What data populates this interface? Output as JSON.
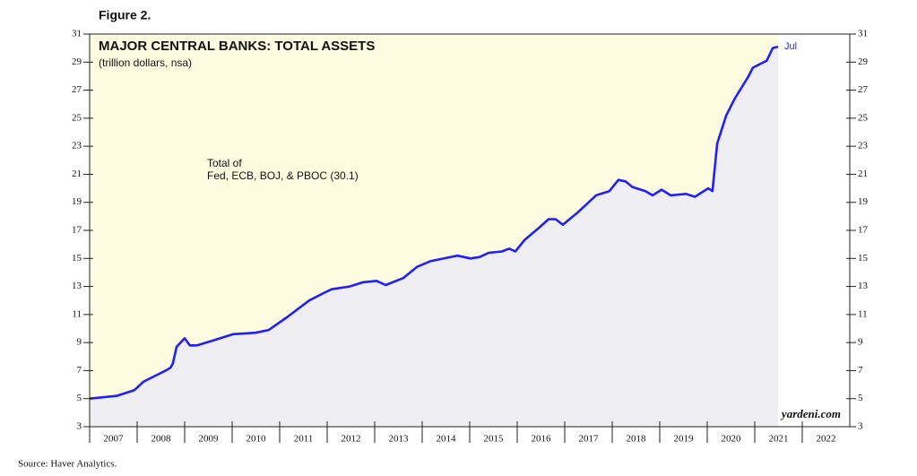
{
  "chart_data": {
    "type": "line",
    "figure_label": "Figure 2.",
    "title": "MAJOR CENTRAL BANKS: TOTAL ASSETS",
    "subtitle": "(trillion dollars, nsa)",
    "annotation": [
      "Total of",
      "Fed, ECB, BOJ, & PBOC (30.1)"
    ],
    "end_label": "Jul",
    "watermark": "yardeni.com",
    "source": "Source: Haver Analytics.",
    "x": [
      2007.0,
      2007.57,
      2007.94,
      2008.13,
      2008.42,
      2008.6,
      2008.7,
      2008.75,
      2008.83,
      2009.0,
      2009.11,
      2009.26,
      2009.55,
      2010.02,
      2010.49,
      2010.77,
      2011.15,
      2011.62,
      2011.91,
      2012.09,
      2012.47,
      2012.75,
      2013.04,
      2013.23,
      2013.6,
      2013.89,
      2014.17,
      2014.74,
      2015.02,
      2015.21,
      2015.4,
      2015.68,
      2015.83,
      2015.96,
      2016.15,
      2016.43,
      2016.66,
      2016.81,
      2016.96,
      2017.28,
      2017.66,
      2017.94,
      2018.13,
      2018.28,
      2018.42,
      2018.7,
      2018.85,
      2019.04,
      2019.23,
      2019.55,
      2019.74,
      2020.02,
      2020.11,
      2020.21,
      2020.4,
      2020.58,
      2020.87,
      2020.96,
      2021.25,
      2021.38,
      2021.49
    ],
    "series": [
      {
        "color": "#1f1fff",
        "values": [
          5.0,
          5.2,
          5.6,
          6.2,
          6.7,
          7.0,
          7.2,
          7.5,
          8.7,
          9.3,
          8.8,
          8.8,
          9.1,
          9.6,
          9.7,
          9.9,
          10.8,
          12.0,
          12.5,
          12.8,
          13.0,
          13.3,
          13.4,
          13.1,
          13.6,
          14.4,
          14.8,
          15.2,
          15.0,
          15.1,
          15.4,
          15.5,
          15.7,
          15.5,
          16.3,
          17.1,
          17.8,
          17.8,
          17.4,
          18.3,
          19.5,
          19.8,
          20.6,
          20.5,
          20.1,
          19.8,
          19.5,
          19.9,
          19.5,
          19.6,
          19.4,
          20.0,
          19.8,
          23.2,
          25.2,
          26.4,
          28.0,
          28.6,
          29.1,
          30.0,
          30.1
        ]
      }
    ],
    "area_color": "#efeff3",
    "background_color": "#fefce0",
    "xlim": [
      2007,
      2023
    ],
    "xticks": [
      {
        "value": 2007,
        "label": "2007"
      },
      {
        "value": 2008,
        "label": "2008"
      },
      {
        "value": 2009,
        "label": "2009"
      },
      {
        "value": 2010,
        "label": "2010"
      },
      {
        "value": 2011,
        "label": "2011"
      },
      {
        "value": 2012,
        "label": "2012"
      },
      {
        "value": 2013,
        "label": "2013"
      },
      {
        "value": 2014,
        "label": "2014"
      },
      {
        "value": 2015,
        "label": "2015"
      },
      {
        "value": 2016,
        "label": "2016"
      },
      {
        "value": 2017,
        "label": "2017"
      },
      {
        "value": 2018,
        "label": "2018"
      },
      {
        "value": 2019,
        "label": "2019"
      },
      {
        "value": 2020,
        "label": "2020"
      },
      {
        "value": 2021,
        "label": "2021"
      },
      {
        "value": 2022,
        "label": "2022"
      }
    ],
    "ylim": [
      3,
      31
    ],
    "yticks": [
      3,
      5,
      7,
      9,
      11,
      13,
      15,
      17,
      19,
      21,
      23,
      25,
      27,
      29,
      31
    ],
    "y2lim": [
      3,
      31
    ],
    "y2ticks": [
      3,
      5,
      7,
      9,
      11,
      13,
      15,
      17,
      19,
      21,
      23,
      25,
      27,
      29,
      31
    ]
  }
}
